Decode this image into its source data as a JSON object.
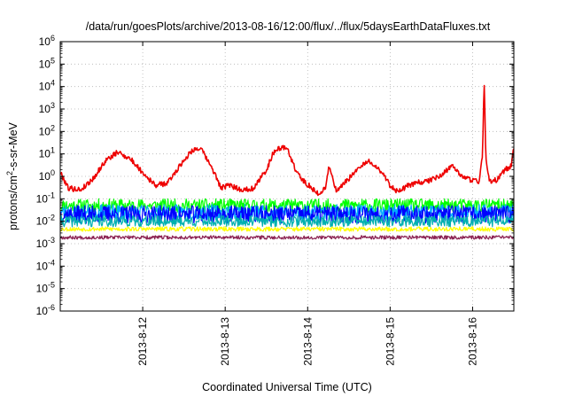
{
  "chart_data": {
    "type": "line",
    "title": "/data/run/goesPlots/archive/2013-08-16/12:00/flux/../flux/5daysEarthDataFluxes.txt",
    "xlabel": "Coordinated Universal Time (UTC)",
    "ylabel": {
      "prefix": "protons/cm",
      "sup": "2",
      "suffix": "-s-sr-MeV"
    },
    "scale_y": "log",
    "ylim": [
      1e-06,
      1000000.0
    ],
    "xlim": [
      11.0,
      16.5
    ],
    "grid": true,
    "xticks": [
      {
        "v": 12,
        "label": "2013-8-12"
      },
      {
        "v": 13,
        "label": "2013-8-13"
      },
      {
        "v": 14,
        "label": "2013-8-14"
      },
      {
        "v": 15,
        "label": "2013-8-15"
      },
      {
        "v": 16,
        "label": "2013-8-16"
      }
    ],
    "yticks": [
      {
        "v": -6,
        "base": "10",
        "exp": "-6"
      },
      {
        "v": -5,
        "base": "10",
        "exp": "-5"
      },
      {
        "v": -4,
        "base": "10",
        "exp": "-4"
      },
      {
        "v": -3,
        "base": "10",
        "exp": "-3"
      },
      {
        "v": -2,
        "base": "10",
        "exp": "-2"
      },
      {
        "v": -1,
        "base": "10",
        "exp": "-1"
      },
      {
        "v": 0,
        "base": "10",
        "exp": "0"
      },
      {
        "v": 1,
        "base": "10",
        "exp": "1"
      },
      {
        "v": 2,
        "base": "10",
        "exp": "2"
      },
      {
        "v": 3,
        "base": "10",
        "exp": "3"
      },
      {
        "v": 4,
        "base": "10",
        "exp": "4"
      },
      {
        "v": 5,
        "base": "10",
        "exp": "5"
      },
      {
        "v": 6,
        "base": "10",
        "exp": "6"
      }
    ],
    "series": [
      {
        "color": "#00ff00",
        "noise": 0.3,
        "seed": 11,
        "x": [
          11.0,
          12.0,
          13.0,
          14.0,
          15.0,
          16.0,
          16.5
        ],
        "y": [
          0.05,
          0.05,
          0.05,
          0.05,
          0.05,
          0.05,
          0.05
        ]
      },
      {
        "color": "#00aaff",
        "noise": 0.35,
        "seed": 23,
        "x": [
          11.0,
          12.0,
          13.0,
          14.0,
          15.0,
          16.0,
          16.5
        ],
        "y": [
          0.025,
          0.025,
          0.025,
          0.025,
          0.025,
          0.025,
          0.025
        ]
      },
      {
        "color": "#0000ff",
        "noise": 0.4,
        "seed": 37,
        "x": [
          11.0,
          12.0,
          13.0,
          14.0,
          15.0,
          16.0,
          16.5
        ],
        "y": [
          0.02,
          0.02,
          0.02,
          0.02,
          0.02,
          0.02,
          0.02
        ]
      },
      {
        "color": "#00b0b0",
        "noise": 0.25,
        "seed": 41,
        "x": [
          11.0,
          12.0,
          13.0,
          14.0,
          15.0,
          16.0,
          16.5
        ],
        "y": [
          0.01,
          0.01,
          0.01,
          0.01,
          0.01,
          0.01,
          0.01
        ]
      },
      {
        "color": "#ffff00",
        "noise": 0.1,
        "seed": 53,
        "x": [
          11.0,
          12.0,
          13.0,
          14.0,
          15.0,
          16.0,
          16.5
        ],
        "y": [
          0.0045,
          0.0045,
          0.0045,
          0.0045,
          0.0045,
          0.0045,
          0.0045
        ]
      },
      {
        "color": "#8b2252",
        "noise": 0.08,
        "seed": 67,
        "x": [
          11.0,
          12.0,
          13.0,
          14.0,
          15.0,
          16.0,
          16.5
        ],
        "y": [
          0.0019,
          0.0019,
          0.0019,
          0.0019,
          0.0019,
          0.0019,
          0.0019
        ]
      },
      {
        "color": "#ee0000",
        "noise": 0.12,
        "seed": 79,
        "x": [
          11.0,
          11.1,
          11.25,
          11.4,
          11.55,
          11.7,
          11.85,
          12.0,
          12.15,
          12.3,
          12.45,
          12.6,
          12.7,
          12.85,
          12.95,
          13.05,
          13.2,
          13.35,
          13.5,
          13.6,
          13.75,
          13.85,
          13.95,
          14.05,
          14.15,
          14.22,
          14.26,
          14.35,
          14.5,
          14.6,
          14.75,
          14.9,
          15.0,
          15.1,
          15.2,
          15.3,
          15.45,
          15.6,
          15.75,
          15.9,
          16.0,
          16.08,
          16.12,
          16.14,
          16.16,
          16.2,
          16.3,
          16.4,
          16.47,
          16.5
        ],
        "y": [
          1.5,
          0.3,
          0.25,
          0.8,
          5,
          12,
          6,
          1.5,
          0.4,
          0.5,
          3,
          15,
          18,
          2,
          0.3,
          0.4,
          0.25,
          0.3,
          2,
          15,
          20,
          2,
          0.6,
          0.3,
          0.15,
          0.35,
          3,
          0.2,
          0.8,
          2,
          5,
          1.5,
          0.4,
          0.2,
          0.35,
          0.5,
          0.6,
          1,
          3,
          0.8,
          0.7,
          0.6,
          10,
          20000,
          8,
          0.6,
          0.7,
          2,
          3,
          20
        ]
      }
    ]
  }
}
